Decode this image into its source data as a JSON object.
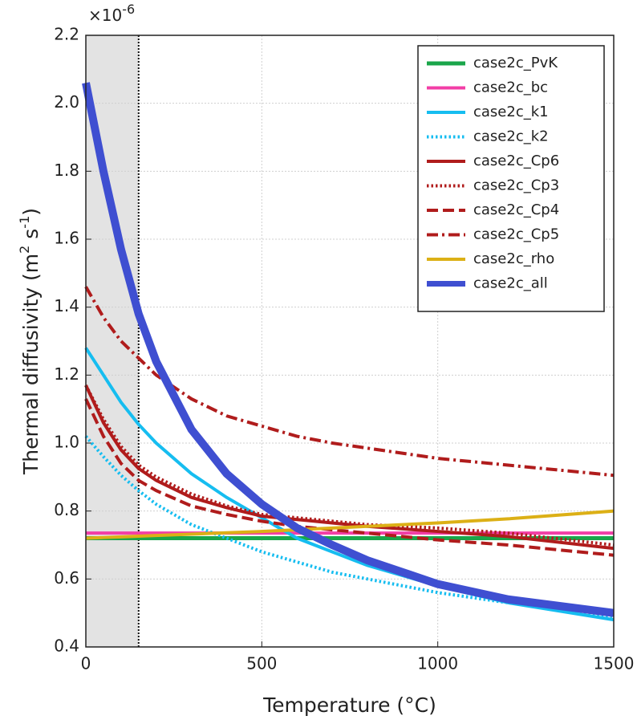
{
  "chart_data": {
    "type": "line",
    "xlabel": "Temperature (°C)",
    "ylabel": [
      "Thermal diffusivity (m",
      "2",
      " s",
      "-1",
      ")"
    ],
    "y_exponent": [
      "×10",
      "-6"
    ],
    "xlim": [
      0,
      1500
    ],
    "xticks": [
      0,
      500,
      1000,
      1500
    ],
    "ylim": [
      0.4,
      2.2
    ],
    "yticks": [
      0.4,
      0.6,
      0.8,
      {
        "value": 1,
        "label": "1.0"
      },
      1.2,
      1.4,
      1.6,
      1.8,
      {
        "value": 2,
        "label": "2.0"
      },
      2.2
    ],
    "grid": true,
    "legend": "upper right",
    "shaded_x": [
      0,
      150
    ],
    "vline_x": 150,
    "x": [
      0,
      50,
      100,
      150,
      200,
      300,
      400,
      500,
      600,
      700,
      800,
      1000,
      1200,
      1500
    ],
    "series": [
      {
        "name": "case2c_PvK",
        "color": "#1aa64a",
        "dash": "solid",
        "width": 5,
        "values": [
          0.72,
          0.72,
          0.72,
          0.72,
          0.72,
          0.72,
          0.72,
          0.72,
          0.72,
          0.72,
          0.72,
          0.72,
          0.72,
          0.72
        ]
      },
      {
        "name": "case2c_bc",
        "color": "#f23ea6",
        "dash": "solid",
        "width": 4,
        "values": [
          0.735,
          0.735,
          0.735,
          0.735,
          0.735,
          0.735,
          0.735,
          0.735,
          0.735,
          0.735,
          0.735,
          0.735,
          0.735,
          0.735
        ]
      },
      {
        "name": "case2c_k1",
        "color": "#16bdf0",
        "dash": "solid",
        "width": 4,
        "values": [
          1.28,
          1.2,
          1.12,
          1.055,
          1.0,
          0.91,
          0.84,
          0.78,
          0.72,
          0.68,
          0.64,
          0.58,
          0.53,
          0.48
        ]
      },
      {
        "name": "case2c_k2",
        "color": "#16bdf0",
        "dash": "dotted",
        "width": 4,
        "values": [
          1.02,
          0.96,
          0.905,
          0.86,
          0.82,
          0.76,
          0.72,
          0.68,
          0.65,
          0.62,
          0.6,
          0.56,
          0.53,
          0.49
        ]
      },
      {
        "name": "case2c_Cp6",
        "color": "#b01c1c",
        "dash": "solid",
        "width": 4,
        "values": [
          1.17,
          1.06,
          0.98,
          0.925,
          0.89,
          0.84,
          0.81,
          0.785,
          0.775,
          0.765,
          0.755,
          0.74,
          0.725,
          0.69
        ]
      },
      {
        "name": "case2c_Cp3",
        "color": "#b01c1c",
        "dash": "dotted",
        "width": 4,
        "values": [
          1.17,
          1.07,
          0.99,
          0.935,
          0.9,
          0.85,
          0.815,
          0.79,
          0.78,
          0.77,
          0.76,
          0.75,
          0.735,
          0.7
        ]
      },
      {
        "name": "case2c_Cp4",
        "color": "#b01c1c",
        "dash": "dashed",
        "width": 4,
        "values": [
          1.13,
          1.02,
          0.94,
          0.89,
          0.86,
          0.815,
          0.79,
          0.77,
          0.755,
          0.745,
          0.735,
          0.715,
          0.7,
          0.67
        ]
      },
      {
        "name": "case2c_Cp5",
        "color": "#b01c1c",
        "dash": "dashdot",
        "width": 4,
        "values": [
          1.46,
          1.37,
          1.3,
          1.25,
          1.2,
          1.13,
          1.08,
          1.05,
          1.02,
          1.0,
          0.985,
          0.955,
          0.935,
          0.905
        ]
      },
      {
        "name": "case2c_rho",
        "color": "#dcb016",
        "dash": "solid",
        "width": 4,
        "values": [
          0.72,
          0.722,
          0.724,
          0.726,
          0.728,
          0.732,
          0.736,
          0.74,
          0.745,
          0.75,
          0.755,
          0.765,
          0.777,
          0.8
        ]
      },
      {
        "name": "case2c_all",
        "color": "#3f4fd1",
        "dash": "solid",
        "width": 10,
        "values": [
          2.06,
          1.8,
          1.57,
          1.38,
          1.24,
          1.04,
          0.91,
          0.82,
          0.75,
          0.7,
          0.655,
          0.585,
          0.54,
          0.5
        ]
      }
    ]
  }
}
